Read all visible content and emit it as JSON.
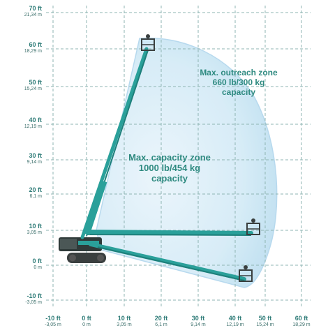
{
  "y_axis": [
    {
      "ft": "70 ft",
      "m": "21,34 m"
    },
    {
      "ft": "60 ft",
      "m": "18,29 m"
    },
    {
      "ft": "50 ft",
      "m": "15,24 m"
    },
    {
      "ft": "40 ft",
      "m": "12,19 m"
    },
    {
      "ft": "30 ft",
      "m": "9,14 m"
    },
    {
      "ft": "20 ft",
      "m": "6,1 m"
    },
    {
      "ft": "10 ft",
      "m": "3,05 m"
    },
    {
      "ft": "0 ft",
      "m": "0 m"
    },
    {
      "ft": "-10 ft",
      "m": "-3,05 m"
    }
  ],
  "x_axis": [
    {
      "ft": "-10 ft",
      "m": "-3,05 m"
    },
    {
      "ft": "0 ft",
      "m": "0 m"
    },
    {
      "ft": "10 ft",
      "m": "3,05 m"
    },
    {
      "ft": "20 ft",
      "m": "6,1 m"
    },
    {
      "ft": "30 ft",
      "m": "9,14 m"
    },
    {
      "ft": "40 ft",
      "m": "12,19 m"
    },
    {
      "ft": "50 ft",
      "m": "15,24 m"
    },
    {
      "ft": "60 ft",
      "m": "18,29 m"
    }
  ],
  "zones": {
    "outreach": {
      "line1": "Max. outreach zone",
      "line2": "660 lb/300 kg",
      "line3": "capacity"
    },
    "capacity": {
      "line1": "Max. capacity zone",
      "line2": "1000 lb/454 kg",
      "line3": "capacity"
    }
  },
  "colors": {
    "grid": "#8fb5b3",
    "zone": "#c8e4f3",
    "machine": "#2aa09a",
    "text": "#2f7c78"
  }
}
